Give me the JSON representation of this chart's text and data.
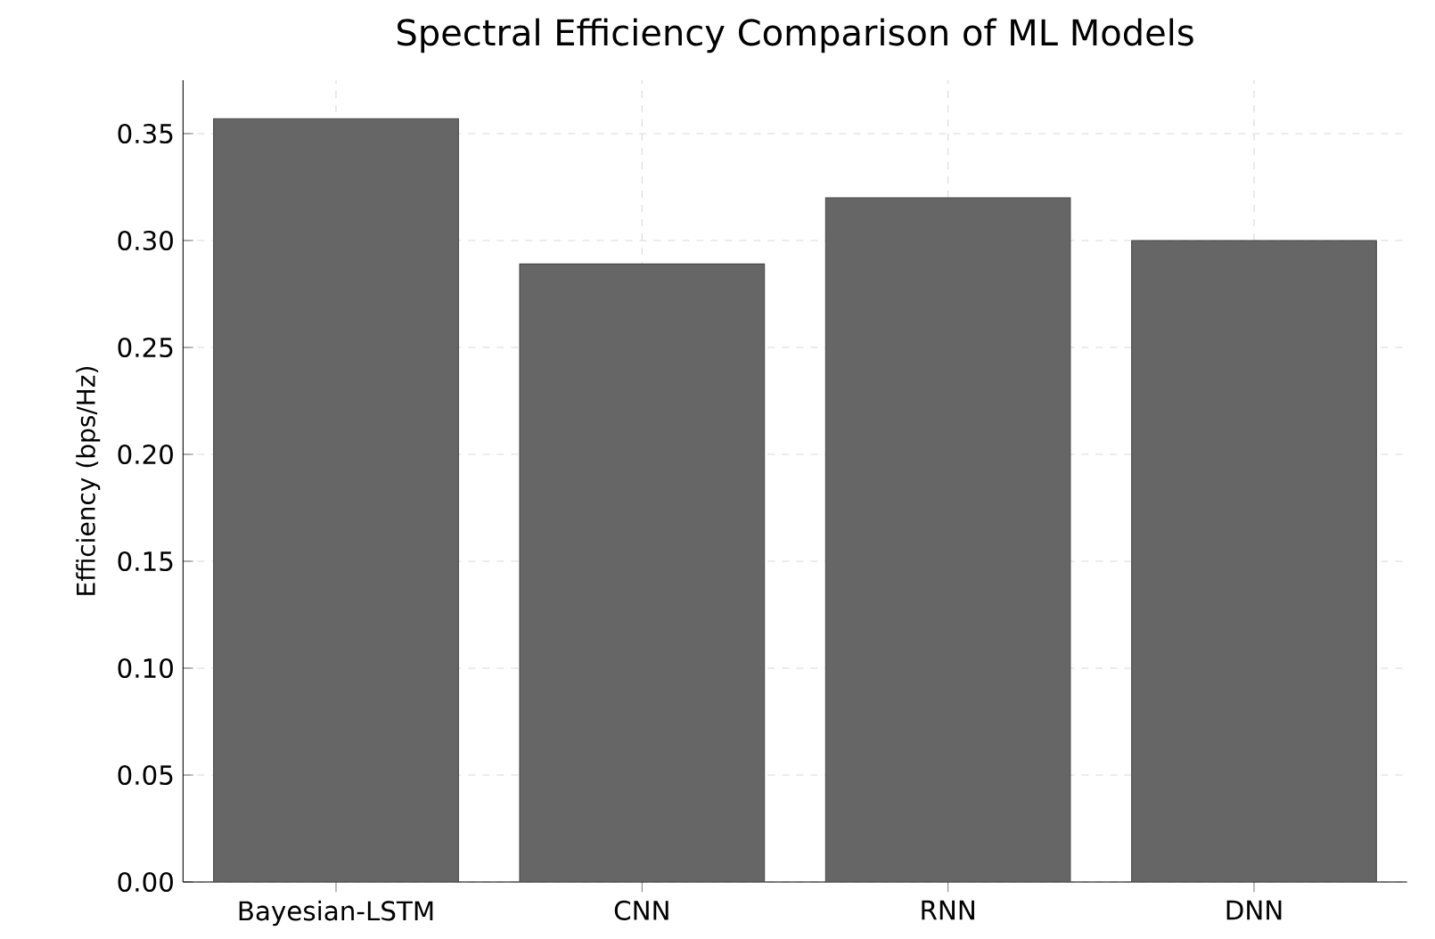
{
  "chart_data": {
    "type": "bar",
    "title": "Spectral Efficiency Comparison of ML Models",
    "ylabel": "Efficiency (bps/Hz)",
    "categories": [
      "Bayesian-LSTM",
      "CNN",
      "RNN",
      "DNN"
    ],
    "values": [
      0.357,
      0.289,
      0.32,
      0.3
    ],
    "color": "#666666",
    "ylim": [
      0,
      0.375
    ],
    "yticks": [
      {
        "value": 0,
        "label": "0.00"
      },
      {
        "value": 0.05,
        "label": "0.05"
      },
      {
        "value": 0.1,
        "label": "0.10"
      },
      {
        "value": 0.15,
        "label": "0.15"
      },
      {
        "value": 0.2,
        "label": "0.20"
      },
      {
        "value": 0.25,
        "label": "0.25"
      },
      {
        "value": 0.3,
        "label": "0.30"
      },
      {
        "value": 0.35,
        "label": "0.35"
      }
    ],
    "grid": true
  }
}
